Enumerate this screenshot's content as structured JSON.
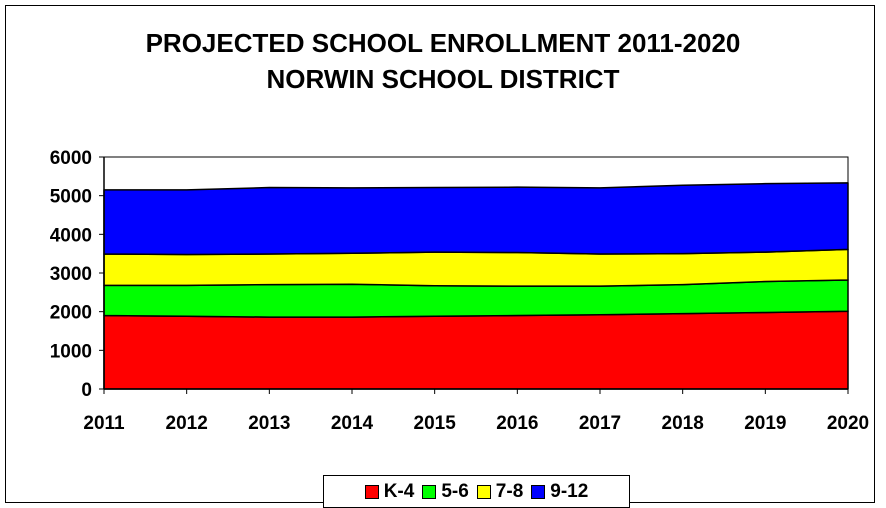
{
  "chart_data": {
    "type": "area",
    "stacked": true,
    "title": "PROJECTED SCHOOL ENROLLMENT 2011-2020",
    "subtitle": "NORWIN SCHOOL DISTRICT",
    "x": [
      "2011",
      "2012",
      "2013",
      "2014",
      "2015",
      "2016",
      "2017",
      "2018",
      "2019",
      "2020"
    ],
    "ylim": [
      0,
      6000
    ],
    "yticks": [
      0,
      1000,
      2000,
      3000,
      4000,
      5000,
      6000
    ],
    "grid": false,
    "legend_position": "bottom",
    "series": [
      {
        "name": "K-4",
        "color": "#ff0000",
        "values": [
          1900,
          1880,
          1860,
          1860,
          1880,
          1900,
          1920,
          1950,
          1980,
          2010
        ]
      },
      {
        "name": "5-6",
        "color": "#00ff00",
        "values": [
          780,
          800,
          840,
          850,
          790,
          760,
          740,
          750,
          800,
          810
        ]
      },
      {
        "name": "7-8",
        "color": "#ffff00",
        "values": [
          810,
          800,
          790,
          800,
          870,
          870,
          830,
          800,
          760,
          790
        ]
      },
      {
        "name": "9-12",
        "color": "#0000ff",
        "values": [
          1660,
          1670,
          1720,
          1690,
          1670,
          1690,
          1710,
          1770,
          1770,
          1720
        ]
      }
    ]
  }
}
